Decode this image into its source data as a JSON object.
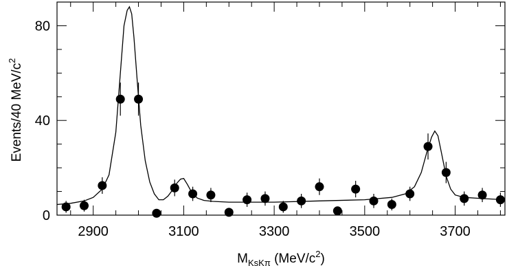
{
  "chart_data": {
    "type": "scatter",
    "xlabel": {
      "main": "M",
      "sub": "KsKπ",
      "unit_open": " (MeV/c",
      "unit_sup": "2",
      "unit_close": ")"
    },
    "ylabel": {
      "main": "Events/40 MeV/c",
      "sup": "2"
    },
    "xlim": [
      2820,
      3810
    ],
    "ylim": [
      0,
      90
    ],
    "x_ticks": [
      2900,
      3100,
      3300,
      3500,
      3700
    ],
    "x_tick_labels": [
      "2900",
      "3100",
      "3300",
      "3500",
      "3700"
    ],
    "y_ticks": [
      0,
      40,
      80
    ],
    "y_tick_labels": [
      "0",
      "40",
      "80"
    ],
    "grid": false,
    "series": [
      {
        "kind": "data-points",
        "x": [
          2840,
          2880,
          2920,
          2960,
          3000,
          3040,
          3080,
          3120,
          3160,
          3200,
          3240,
          3280,
          3320,
          3360,
          3400,
          3440,
          3480,
          3520,
          3560,
          3600,
          3640,
          3680,
          3720,
          3760,
          3800
        ],
        "y": [
          3.5,
          4.0,
          12.5,
          49.0,
          49.0,
          0.8,
          11.5,
          9.0,
          8.5,
          1.2,
          6.5,
          7.0,
          3.5,
          6.0,
          12.0,
          1.8,
          11.0,
          6.0,
          4.5,
          9.0,
          29.0,
          18.0,
          7.0,
          8.5,
          6.5
        ],
        "err": [
          2.5,
          2.5,
          3.5,
          7.0,
          7.0,
          1.5,
          3.5,
          3.0,
          3.0,
          1.5,
          3.0,
          3.0,
          2.5,
          3.0,
          3.5,
          1.5,
          3.5,
          3.0,
          2.5,
          3.0,
          5.5,
          4.5,
          3.0,
          3.0,
          3.0
        ]
      },
      {
        "kind": "fit-curve",
        "x": [
          2820,
          2850,
          2880,
          2900,
          2920,
          2935,
          2950,
          2960,
          2968,
          2975,
          2980,
          2985,
          2990,
          2998,
          3005,
          3015,
          3025,
          3035,
          3045,
          3055,
          3065,
          3075,
          3085,
          3093,
          3100,
          3108,
          3118,
          3130,
          3145,
          3165,
          3200,
          3300,
          3400,
          3500,
          3560,
          3590,
          3610,
          3625,
          3638,
          3648,
          3655,
          3662,
          3670,
          3680,
          3690,
          3700,
          3720,
          3760,
          3810
        ],
        "y": [
          4.5,
          5.0,
          6.0,
          7.5,
          11.0,
          17.0,
          35.0,
          60.0,
          80.0,
          86.5,
          88.0,
          85.0,
          75.0,
          55.0,
          38.0,
          23.0,
          14.0,
          9.0,
          6.5,
          6.5,
          8.0,
          10.5,
          13.5,
          15.2,
          15.5,
          13.0,
          9.5,
          7.2,
          6.2,
          5.8,
          5.5,
          5.5,
          6.0,
          6.5,
          7.5,
          9.0,
          12.0,
          18.0,
          27.0,
          33.0,
          35.5,
          33.5,
          26.0,
          16.5,
          11.0,
          8.5,
          7.5,
          7.0,
          6.5
        ]
      }
    ]
  }
}
